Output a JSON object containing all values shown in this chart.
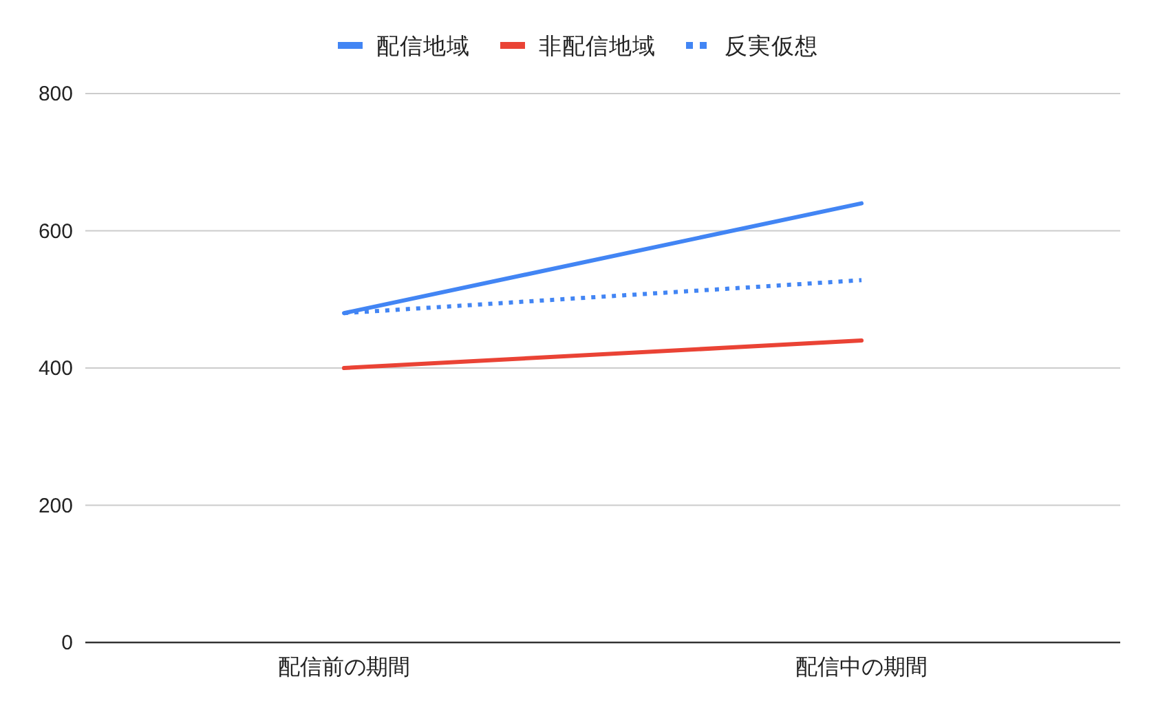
{
  "chart_data": {
    "type": "line",
    "categories": [
      "配信前の期間",
      "配信中の期間"
    ],
    "series": [
      {
        "name": "配信地域",
        "color": "#4285f4",
        "values": [
          480,
          640
        ],
        "line_style": "solid"
      },
      {
        "name": "非配信地域",
        "color": "#ea4335",
        "values": [
          400,
          440
        ],
        "line_style": "solid"
      },
      {
        "name": "反実仮想",
        "color": "#4285f4",
        "values": [
          480,
          528
        ],
        "line_style": "dotted"
      }
    ],
    "ylim": [
      0,
      800
    ],
    "yticks": [
      0,
      200,
      400,
      600,
      800
    ],
    "grid": "y",
    "legend": "top"
  }
}
